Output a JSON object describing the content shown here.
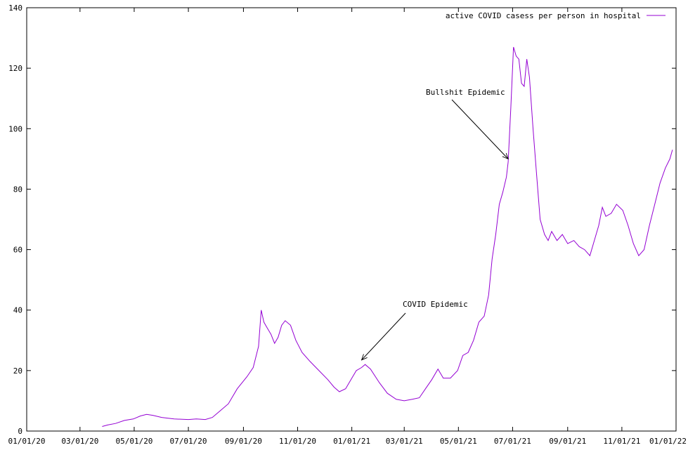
{
  "chart_data": {
    "type": "line",
    "title": "",
    "xlabel": "",
    "ylabel": "",
    "xlim": [
      "2020-01-01",
      "2022-01-01"
    ],
    "ylim": [
      0,
      140
    ],
    "x_ticks": [
      "01/01/20",
      "03/01/20",
      "05/01/20",
      "07/01/20",
      "09/01/20",
      "11/01/20",
      "01/01/21",
      "03/01/21",
      "05/01/21",
      "07/01/21",
      "09/01/21",
      "11/01/21",
      "01/01/22"
    ],
    "x_tick_dates": [
      "2020-01-01",
      "2020-03-01",
      "2020-05-01",
      "2020-07-01",
      "2020-09-01",
      "2020-11-01",
      "2021-01-01",
      "2021-03-01",
      "2021-05-01",
      "2021-07-01",
      "2021-09-01",
      "2021-11-01",
      "2022-01-01"
    ],
    "y_ticks": [
      "0",
      "20",
      "40",
      "60",
      "80",
      "100",
      "120",
      "140"
    ],
    "y_tick_values": [
      0,
      20,
      40,
      60,
      80,
      100,
      120,
      140
    ],
    "grid": false,
    "legend_position": "top-right",
    "series": [
      {
        "name": "active COVID casess per person in hospital",
        "color": "#9400d3",
        "points": [
          [
            "2020-03-26",
            1.5
          ],
          [
            "2020-04-01",
            2.0
          ],
          [
            "2020-04-10",
            2.5
          ],
          [
            "2020-04-20",
            3.5
          ],
          [
            "2020-04-30",
            4.0
          ],
          [
            "2020-05-08",
            5.0
          ],
          [
            "2020-05-15",
            5.5
          ],
          [
            "2020-05-22",
            5.2
          ],
          [
            "2020-06-01",
            4.5
          ],
          [
            "2020-06-15",
            4.0
          ],
          [
            "2020-07-01",
            3.8
          ],
          [
            "2020-07-10",
            4.0
          ],
          [
            "2020-07-20",
            3.8
          ],
          [
            "2020-07-28",
            4.5
          ],
          [
            "2020-08-05",
            6.5
          ],
          [
            "2020-08-15",
            9.0
          ],
          [
            "2020-08-25",
            14.0
          ],
          [
            "2020-09-05",
            18.0
          ],
          [
            "2020-09-12",
            21.0
          ],
          [
            "2020-09-18",
            28.0
          ],
          [
            "2020-09-21",
            40.0
          ],
          [
            "2020-09-24",
            36.0
          ],
          [
            "2020-09-28",
            34.0
          ],
          [
            "2020-10-02",
            32.0
          ],
          [
            "2020-10-06",
            29.0
          ],
          [
            "2020-10-10",
            31.0
          ],
          [
            "2020-10-14",
            35.0
          ],
          [
            "2020-10-18",
            36.5
          ],
          [
            "2020-10-24",
            35.0
          ],
          [
            "2020-10-30",
            30.0
          ],
          [
            "2020-11-06",
            26.0
          ],
          [
            "2020-11-15",
            23.0
          ],
          [
            "2020-11-25",
            20.0
          ],
          [
            "2020-12-05",
            17.0
          ],
          [
            "2020-12-12",
            14.5
          ],
          [
            "2020-12-18",
            13.0
          ],
          [
            "2020-12-25",
            14.0
          ],
          [
            "2020-12-31",
            17.0
          ],
          [
            "2021-01-06",
            20.0
          ],
          [
            "2021-01-12",
            21.0
          ],
          [
            "2021-01-16",
            22.0
          ],
          [
            "2021-01-22",
            20.5
          ],
          [
            "2021-02-01",
            16.0
          ],
          [
            "2021-02-10",
            12.5
          ],
          [
            "2021-02-20",
            10.5
          ],
          [
            "2021-03-01",
            10.0
          ],
          [
            "2021-03-10",
            10.5
          ],
          [
            "2021-03-18",
            11.0
          ],
          [
            "2021-03-25",
            14.0
          ],
          [
            "2021-04-01",
            17.0
          ],
          [
            "2021-04-08",
            20.5
          ],
          [
            "2021-04-14",
            17.5
          ],
          [
            "2021-04-22",
            17.5
          ],
          [
            "2021-04-30",
            20.0
          ],
          [
            "2021-05-06",
            25.0
          ],
          [
            "2021-05-12",
            26.0
          ],
          [
            "2021-05-18",
            30.0
          ],
          [
            "2021-05-24",
            36.0
          ],
          [
            "2021-05-30",
            38.0
          ],
          [
            "2021-06-04",
            45.0
          ],
          [
            "2021-06-08",
            57.0
          ],
          [
            "2021-06-12",
            65.0
          ],
          [
            "2021-06-16",
            75.0
          ],
          [
            "2021-06-20",
            79.0
          ],
          [
            "2021-06-24",
            84.0
          ],
          [
            "2021-06-26",
            89.0
          ],
          [
            "2021-06-29",
            107.0
          ],
          [
            "2021-07-02",
            127.0
          ],
          [
            "2021-07-05",
            124.0
          ],
          [
            "2021-07-08",
            123.0
          ],
          [
            "2021-07-11",
            115.0
          ],
          [
            "2021-07-14",
            114.0
          ],
          [
            "2021-07-17",
            123.0
          ],
          [
            "2021-07-20",
            117.0
          ],
          [
            "2021-07-24",
            100.0
          ],
          [
            "2021-07-28",
            85.0
          ],
          [
            "2021-08-01",
            70.0
          ],
          [
            "2021-08-06",
            65.0
          ],
          [
            "2021-08-10",
            63.0
          ],
          [
            "2021-08-14",
            66.0
          ],
          [
            "2021-08-20",
            63.0
          ],
          [
            "2021-08-26",
            65.0
          ],
          [
            "2021-09-01",
            62.0
          ],
          [
            "2021-09-08",
            63.0
          ],
          [
            "2021-09-14",
            61.0
          ],
          [
            "2021-09-20",
            60.0
          ],
          [
            "2021-09-26",
            58.0
          ],
          [
            "2021-10-01",
            63.0
          ],
          [
            "2021-10-06",
            68.0
          ],
          [
            "2021-10-10",
            74.0
          ],
          [
            "2021-10-14",
            71.0
          ],
          [
            "2021-10-20",
            72.0
          ],
          [
            "2021-10-26",
            75.0
          ],
          [
            "2021-11-02",
            73.0
          ],
          [
            "2021-11-08",
            68.0
          ],
          [
            "2021-11-14",
            62.0
          ],
          [
            "2021-11-20",
            58.0
          ],
          [
            "2021-11-26",
            60.0
          ],
          [
            "2021-12-02",
            68.0
          ],
          [
            "2021-12-08",
            75.0
          ],
          [
            "2021-12-14",
            82.0
          ],
          [
            "2021-12-20",
            87.0
          ],
          [
            "2021-12-25",
            90.0
          ],
          [
            "2021-12-28",
            93.0
          ]
        ]
      }
    ],
    "annotations": [
      {
        "text": "COVID Epidemic",
        "arrow_to": [
          "2021-01-12",
          23.5
        ]
      },
      {
        "text": "Bullshit Epidemic",
        "arrow_to": [
          "2021-06-26",
          90.0
        ]
      }
    ]
  }
}
